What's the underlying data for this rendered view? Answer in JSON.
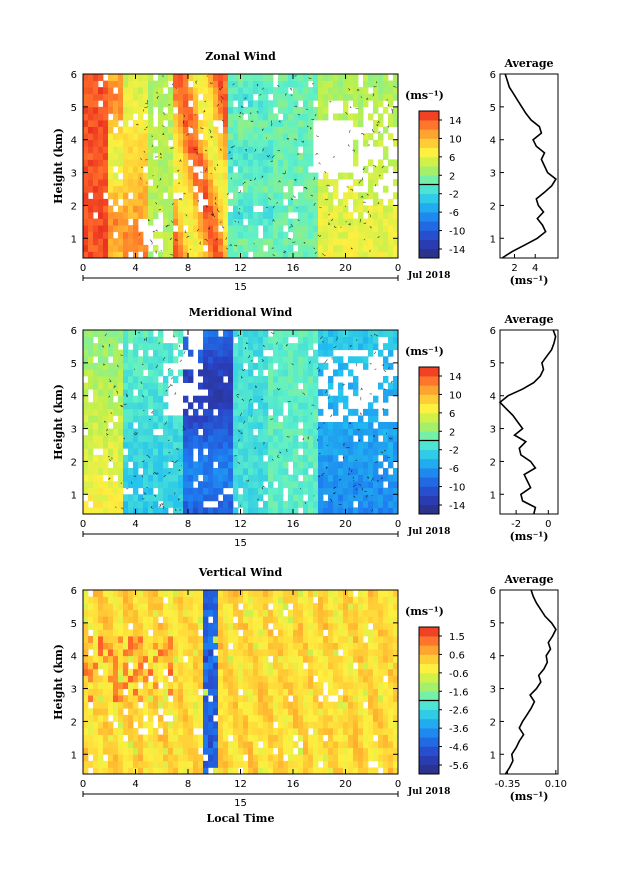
{
  "figure": {
    "x_label": "Local Time",
    "date_label": "Jul 2018",
    "day_label": "15"
  },
  "chart_data": [
    {
      "type": "heatmap",
      "title": "Zonal Wind",
      "ylabel": "Height (km)",
      "xlabel": "",
      "x_ticks": [
        "0",
        "4",
        "8",
        "12",
        "16",
        "20",
        "0"
      ],
      "x_range_hours": [
        0,
        24
      ],
      "y_ticks": [
        "1",
        "2",
        "3",
        "4",
        "5",
        "6"
      ],
      "y_range_km": [
        0.4,
        6.0
      ],
      "colorbar": {
        "unit": "(ms⁻¹)",
        "ticks": [
          "14",
          "10",
          "6",
          "2",
          "-2",
          "-6",
          "-10",
          "-14"
        ],
        "range": [
          -16,
          16
        ]
      },
      "profile": {
        "title": "Average",
        "xlabel": "(ms⁻¹)",
        "x_ticks": [
          "2",
          "4"
        ],
        "xlim": [
          0.6,
          6.2
        ],
        "heights": [
          0.4,
          0.6,
          0.8,
          1.0,
          1.2,
          1.4,
          1.6,
          1.8,
          2.0,
          2.2,
          2.4,
          2.6,
          2.8,
          3.0,
          3.2,
          3.4,
          3.6,
          3.8,
          4.0,
          4.2,
          4.4,
          4.6,
          4.8,
          5.0,
          5.2,
          5.4,
          5.6,
          5.8,
          6.0
        ],
        "values": [
          0.8,
          1.8,
          3.0,
          4.2,
          5.0,
          4.7,
          4.2,
          4.8,
          4.3,
          4.1,
          4.9,
          5.6,
          6.0,
          5.2,
          4.9,
          4.6,
          4.9,
          4.1,
          3.8,
          4.6,
          4.4,
          3.6,
          3.1,
          2.7,
          2.3,
          1.9,
          1.5,
          1.3,
          1.1
        ]
      }
    },
    {
      "type": "heatmap",
      "title": "Meridional Wind",
      "ylabel": "Height (km)",
      "xlabel": "",
      "x_ticks": [
        "0",
        "4",
        "8",
        "12",
        "16",
        "20",
        "0"
      ],
      "x_range_hours": [
        0,
        24
      ],
      "y_ticks": [
        "1",
        "2",
        "3",
        "4",
        "5",
        "6"
      ],
      "y_range_km": [
        0.4,
        6.0
      ],
      "colorbar": {
        "unit": "(ms⁻¹)",
        "ticks": [
          "14",
          "10",
          "6",
          "2",
          "-2",
          "-6",
          "-10",
          "-14"
        ],
        "range": [
          -16,
          16
        ]
      },
      "profile": {
        "title": "Average",
        "xlabel": "(ms⁻¹)",
        "x_ticks": [
          "-2",
          "0"
        ],
        "xlim": [
          -3.0,
          0.6
        ],
        "heights": [
          0.4,
          0.6,
          0.8,
          1.0,
          1.2,
          1.4,
          1.6,
          1.8,
          2.0,
          2.2,
          2.4,
          2.6,
          2.8,
          3.0,
          3.2,
          3.4,
          3.6,
          3.8,
          4.0,
          4.2,
          4.4,
          4.6,
          4.8,
          5.0,
          5.2,
          5.4,
          5.6,
          5.8,
          6.0
        ],
        "values": [
          -0.9,
          -0.8,
          -1.6,
          -1.7,
          -1.1,
          -1.3,
          -1.5,
          -0.8,
          -1.1,
          -1.7,
          -1.8,
          -1.4,
          -2.1,
          -1.6,
          -1.9,
          -2.2,
          -2.6,
          -3.0,
          -2.5,
          -1.6,
          -0.9,
          -0.5,
          -0.3,
          -0.4,
          -0.1,
          0.2,
          0.35,
          0.45,
          0.3
        ]
      }
    },
    {
      "type": "heatmap",
      "title": "Vertical Wind",
      "ylabel": "Height (km)",
      "xlabel": "Local Time",
      "x_ticks": [
        "0",
        "4",
        "8",
        "12",
        "16",
        "20",
        "0"
      ],
      "x_range_hours": [
        0,
        24
      ],
      "y_ticks": [
        "1",
        "2",
        "3",
        "4",
        "5",
        "6"
      ],
      "y_range_km": [
        0.4,
        6.0
      ],
      "colorbar": {
        "unit": "(ms⁻¹)",
        "ticks": [
          "1.5",
          "0.6",
          "-0.6",
          "-1.6",
          "-2.6",
          "-3.6",
          "-4.6",
          "-5.6"
        ],
        "range": [
          -6.0,
          2.0
        ]
      },
      "profile": {
        "title": "Average",
        "xlabel": "(ms⁻¹)",
        "x_ticks": [
          "-0.35",
          "0.10"
        ],
        "xlim": [
          -0.42,
          0.12
        ],
        "heights": [
          0.4,
          0.6,
          0.8,
          1.0,
          1.2,
          1.4,
          1.6,
          1.8,
          2.0,
          2.2,
          2.4,
          2.6,
          2.8,
          3.0,
          3.2,
          3.4,
          3.6,
          3.8,
          4.0,
          4.2,
          4.4,
          4.6,
          4.8,
          5.0,
          5.2,
          5.4,
          5.6,
          5.8,
          6.0
        ],
        "values": [
          -0.37,
          -0.33,
          -0.3,
          -0.31,
          -0.27,
          -0.24,
          -0.2,
          -0.24,
          -0.21,
          -0.17,
          -0.13,
          -0.1,
          -0.14,
          -0.08,
          -0.04,
          -0.06,
          -0.01,
          0.02,
          0.01,
          0.05,
          0.03,
          0.07,
          0.1,
          0.06,
          0.0,
          -0.04,
          -0.08,
          -0.11,
          -0.13
        ]
      }
    }
  ]
}
